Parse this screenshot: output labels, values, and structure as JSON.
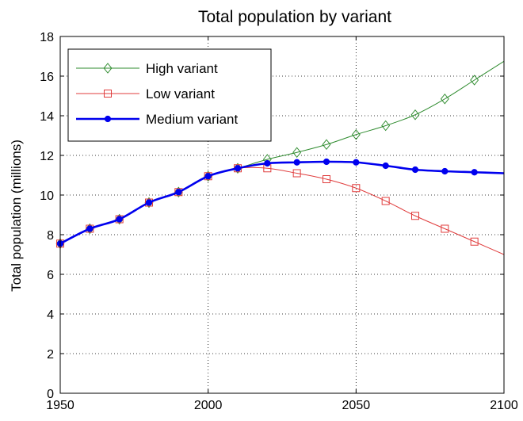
{
  "chart_data": {
    "type": "line",
    "title": "Total population by variant",
    "xlabel": "",
    "ylabel": "Total population (millions)",
    "xlim": [
      1950,
      2100
    ],
    "ylim": [
      0,
      18
    ],
    "xticks": [
      1950,
      2000,
      2050,
      2100
    ],
    "yticks": [
      0,
      2,
      4,
      6,
      8,
      10,
      12,
      14,
      16,
      18
    ],
    "grid": true,
    "legend_position": "top-left",
    "series": [
      {
        "name": "High variant",
        "color": "#2e8b2e",
        "marker": "diamond",
        "x": [
          1950,
          1960,
          1970,
          1980,
          1990,
          2000,
          2010,
          2020,
          2030,
          2040,
          2050,
          2060,
          2070,
          2080,
          2090,
          2100
        ],
        "y": [
          7.55,
          8.3,
          8.78,
          9.62,
          10.15,
          10.95,
          11.35,
          11.8,
          12.15,
          12.55,
          13.05,
          13.5,
          14.05,
          14.85,
          15.8,
          16.75
        ],
        "marker_until": 2090
      },
      {
        "name": "Low variant",
        "color": "#e03c3c",
        "marker": "square",
        "x": [
          1950,
          1960,
          1970,
          1980,
          1990,
          2000,
          2010,
          2020,
          2030,
          2040,
          2050,
          2060,
          2070,
          2080,
          2090,
          2100
        ],
        "y": [
          7.55,
          8.3,
          8.78,
          9.62,
          10.15,
          10.95,
          11.35,
          11.35,
          11.1,
          10.8,
          10.35,
          9.7,
          8.95,
          8.3,
          7.65,
          7.0
        ],
        "marker_until": 2090
      },
      {
        "name": "Medium variant",
        "color": "#0000ee",
        "marker": "dot",
        "x": [
          1950,
          1960,
          1970,
          1980,
          1990,
          2000,
          2010,
          2020,
          2030,
          2040,
          2050,
          2060,
          2070,
          2080,
          2090,
          2100
        ],
        "y": [
          7.55,
          8.3,
          8.78,
          9.62,
          10.15,
          10.95,
          11.35,
          11.6,
          11.65,
          11.68,
          11.65,
          11.48,
          11.28,
          11.2,
          11.15,
          11.1
        ],
        "marker_until": 2090
      }
    ]
  }
}
